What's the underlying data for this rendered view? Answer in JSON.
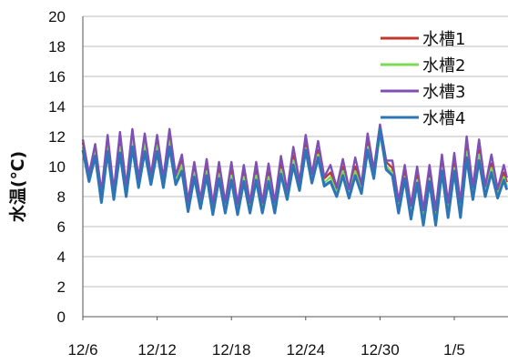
{
  "chart_data": {
    "type": "line",
    "ylabel": "水温(℃)",
    "ylim": [
      0,
      20
    ],
    "yticks": [
      0,
      2,
      4,
      6,
      8,
      10,
      12,
      14,
      16,
      18,
      20
    ],
    "xlim": [
      "12/6",
      "1/9"
    ],
    "xtick_labels": [
      "12/6",
      "12/12",
      "12/18",
      "12/24",
      "12/30",
      "1/5"
    ],
    "grid": "horizontal",
    "legend_position": "top-right",
    "x_dates": [
      "12/6",
      "12/7",
      "12/8",
      "12/9",
      "12/10",
      "12/11",
      "12/12",
      "12/13",
      "12/14",
      "12/15",
      "12/16",
      "12/17",
      "12/18",
      "12/19",
      "12/20",
      "12/21",
      "12/22",
      "12/23",
      "12/24",
      "12/25",
      "12/26",
      "12/27",
      "12/28",
      "12/29",
      "12/30",
      "12/31",
      "1/1",
      "1/2",
      "1/3",
      "1/4",
      "1/5",
      "1/6",
      "1/7",
      "1/8",
      "1/9"
    ],
    "series": [
      {
        "name": "水槽1",
        "color": "#c0392b",
        "daily_max": [
          11.6,
          11.3,
          11.7,
          11.6,
          12.1,
          11.8,
          11.7,
          12.0,
          10.4,
          9.9,
          10.0,
          9.8,
          9.7,
          9.6,
          9.7,
          9.6,
          10.1,
          10.7,
          11.5,
          11.1,
          9.6,
          10.0,
          10.0,
          11.6,
          12.4,
          9.9,
          9.6,
          9.4,
          9.5,
          10.2,
          10.2,
          11.3,
          11.1,
          10.2,
          9.6
        ],
        "daily_min": [
          9.4,
          8.2,
          8.3,
          8.6,
          9.1,
          9.3,
          9.1,
          9.3,
          7.6,
          7.7,
          7.4,
          7.5,
          7.4,
          7.5,
          7.5,
          7.5,
          8.3,
          8.9,
          9.4,
          9.2,
          8.5,
          8.4,
          8.7,
          9.7,
          10.3,
          7.6,
          7.3,
          7.0,
          7.0,
          7.5,
          7.5,
          8.5,
          8.6,
          8.4,
          8.3
        ]
      },
      {
        "name": "水槽2",
        "color": "#7ed957",
        "daily_max": [
          11.3,
          11.0,
          11.4,
          11.3,
          11.8,
          11.5,
          11.4,
          11.7,
          10.1,
          9.6,
          9.7,
          9.5,
          9.4,
          9.3,
          9.4,
          9.3,
          9.8,
          10.4,
          11.2,
          10.8,
          9.3,
          9.7,
          9.7,
          11.3,
          12.1,
          9.6,
          9.3,
          9.1,
          9.2,
          9.9,
          9.9,
          11.0,
          10.8,
          9.9,
          9.3
        ],
        "daily_min": [
          9.1,
          7.9,
          8.0,
          8.3,
          8.8,
          9.0,
          8.8,
          9.0,
          7.3,
          7.4,
          7.1,
          7.2,
          7.1,
          7.2,
          7.2,
          7.2,
          8.0,
          8.6,
          9.1,
          8.9,
          8.2,
          8.1,
          8.4,
          9.4,
          10.0,
          7.3,
          7.0,
          6.7,
          6.7,
          7.2,
          7.2,
          8.2,
          8.3,
          8.1,
          8.0
        ]
      },
      {
        "name": "水槽3",
        "color": "#7f4fb5",
        "daily_max": [
          11.8,
          11.5,
          12.1,
          12.3,
          12.5,
          12.2,
          12.1,
          12.5,
          10.8,
          10.3,
          10.5,
          10.3,
          10.3,
          10.1,
          10.3,
          10.2,
          10.7,
          11.3,
          12.1,
          11.7,
          10.1,
          10.5,
          10.6,
          12.2,
          12.8,
          10.4,
          10.1,
          10.0,
          10.1,
          10.8,
          10.9,
          12.0,
          11.8,
          10.8,
          10.1
        ],
        "daily_min": [
          9.5,
          8.3,
          8.4,
          8.7,
          9.2,
          9.4,
          9.2,
          9.4,
          7.7,
          7.8,
          7.5,
          7.6,
          7.5,
          7.6,
          7.6,
          7.6,
          8.4,
          9.0,
          9.5,
          9.3,
          8.6,
          8.5,
          8.8,
          9.8,
          10.4,
          7.7,
          7.4,
          7.1,
          7.1,
          7.6,
          7.6,
          8.6,
          8.7,
          8.5,
          8.4
        ]
      },
      {
        "name": "水槽4",
        "color": "#2e75b6",
        "daily_max": [
          11.1,
          10.7,
          11.0,
          10.9,
          11.3,
          11.0,
          11.0,
          11.3,
          9.7,
          9.3,
          9.4,
          9.2,
          9.1,
          9.0,
          9.1,
          9.0,
          9.5,
          10.1,
          11.1,
          10.6,
          9.0,
          9.4,
          9.4,
          11.1,
          12.5,
          9.4,
          9.2,
          8.9,
          9.0,
          9.7,
          9.7,
          10.6,
          10.4,
          9.6,
          9.1
        ],
        "daily_min": [
          9.0,
          7.6,
          7.8,
          8.0,
          8.6,
          8.8,
          8.6,
          8.8,
          7.0,
          7.2,
          6.8,
          6.9,
          6.8,
          6.9,
          6.9,
          6.9,
          7.8,
          8.4,
          8.9,
          8.7,
          8.0,
          7.9,
          8.2,
          9.2,
          9.8,
          6.9,
          6.5,
          6.1,
          6.1,
          6.6,
          6.6,
          7.8,
          8.0,
          7.9,
          7.8
        ]
      }
    ]
  }
}
